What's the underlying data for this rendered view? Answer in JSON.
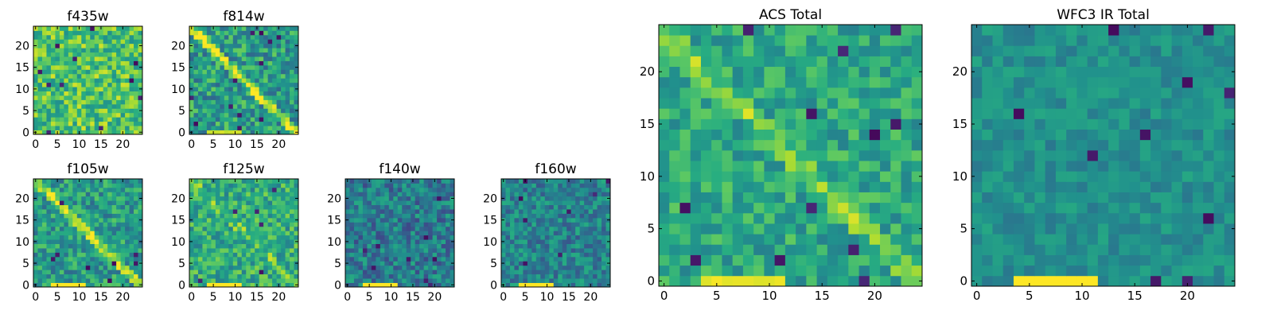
{
  "figure": {
    "description": "heatmap mosaic"
  },
  "chart_data": [
    {
      "type": "heatmap",
      "title": "f435w",
      "grid_size": 25,
      "xticks": [
        0,
        5,
        10,
        15,
        20
      ],
      "yticks": [
        0,
        5,
        10,
        15,
        20
      ],
      "colormap": "viridis",
      "seed": 435,
      "mean": 0.72,
      "spread": 0.22,
      "streak": 0,
      "dark_spots": 12,
      "bright_band": 0
    },
    {
      "type": "heatmap",
      "title": "f814w",
      "grid_size": 25,
      "xticks": [
        0,
        5,
        10,
        15,
        20
      ],
      "yticks": [
        0,
        5,
        10,
        15,
        20
      ],
      "colormap": "viridis",
      "seed": 814,
      "mean": 0.55,
      "spread": 0.22,
      "streak": 0.45,
      "dark_spots": 14,
      "bright_band": 0.9
    },
    {
      "type": "heatmap",
      "title": "f105w",
      "grid_size": 25,
      "xticks": [
        0,
        5,
        10,
        15,
        20
      ],
      "yticks": [
        0,
        5,
        10,
        15,
        20
      ],
      "colormap": "viridis",
      "seed": 105,
      "mean": 0.55,
      "spread": 0.2,
      "streak": 0.4,
      "dark_spots": 8,
      "bright_band": 1.0
    },
    {
      "type": "heatmap",
      "title": "f125w",
      "grid_size": 25,
      "xticks": [
        0,
        5,
        10,
        15,
        20
      ],
      "yticks": [
        0,
        5,
        10,
        15,
        20
      ],
      "colormap": "viridis",
      "seed": 125,
      "mean": 0.62,
      "spread": 0.2,
      "streak": 0.15,
      "dark_spots": 6,
      "bright_band": 1.0
    },
    {
      "type": "heatmap",
      "title": "f140w",
      "grid_size": 25,
      "xticks": [
        0,
        5,
        10,
        15,
        20
      ],
      "yticks": [
        0,
        5,
        10,
        15,
        20
      ],
      "colormap": "viridis",
      "seed": 140,
      "mean": 0.42,
      "spread": 0.2,
      "streak": 0,
      "dark_spots": 10,
      "bright_band": 1.0
    },
    {
      "type": "heatmap",
      "title": "f160w",
      "grid_size": 25,
      "xticks": [
        0,
        5,
        10,
        15,
        20
      ],
      "yticks": [
        0,
        5,
        10,
        15,
        20
      ],
      "colormap": "viridis",
      "seed": 160,
      "mean": 0.45,
      "spread": 0.18,
      "streak": 0,
      "dark_spots": 8,
      "bright_band": 1.0
    },
    {
      "type": "heatmap",
      "title": "ACS Total",
      "grid_size": 25,
      "xticks": [
        0,
        5,
        10,
        15,
        20
      ],
      "yticks": [
        0,
        5,
        10,
        15,
        20
      ],
      "colormap": "viridis",
      "seed": 999,
      "mean": 0.6,
      "spread": 0.16,
      "streak": 0.2,
      "dark_spots": 12,
      "bright_band": 0.95
    },
    {
      "type": "heatmap",
      "title": "WFC3 IR Total",
      "grid_size": 25,
      "xticks": [
        0,
        5,
        10,
        15,
        20
      ],
      "yticks": [
        0,
        5,
        10,
        15,
        20
      ],
      "colormap": "viridis",
      "seed": 777,
      "mean": 0.5,
      "spread": 0.1,
      "streak": 0,
      "dark_spots": 10,
      "bright_band": 1.0
    }
  ]
}
